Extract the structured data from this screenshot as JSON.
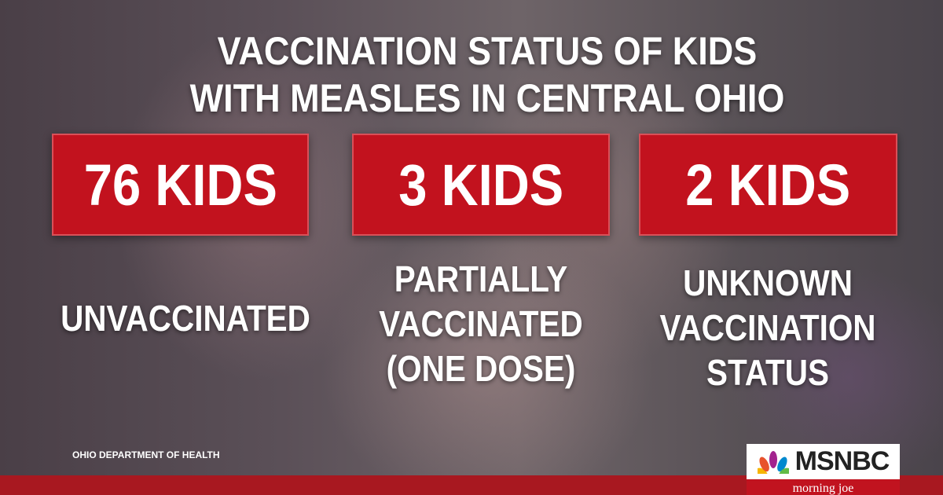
{
  "title_lines": [
    "VACCINATION STATUS OF KIDS",
    "WITH MEASLES IN CENTRAL OHIO"
  ],
  "stats": [
    {
      "count": "76 KIDS",
      "label_lines": [
        "UNVACCINATED"
      ]
    },
    {
      "count": "3 KIDS",
      "label_lines": [
        "PARTIALLY",
        "VACCINATED",
        "(ONE DOSE)"
      ]
    },
    {
      "count": "2 KIDS",
      "label_lines": [
        "UNKNOWN",
        "VACCINATION",
        "STATUS"
      ]
    }
  ],
  "source": "OHIO DEPARTMENT OF HEALTH",
  "logo": {
    "network": "MSNBC",
    "show": "morning joe"
  }
}
